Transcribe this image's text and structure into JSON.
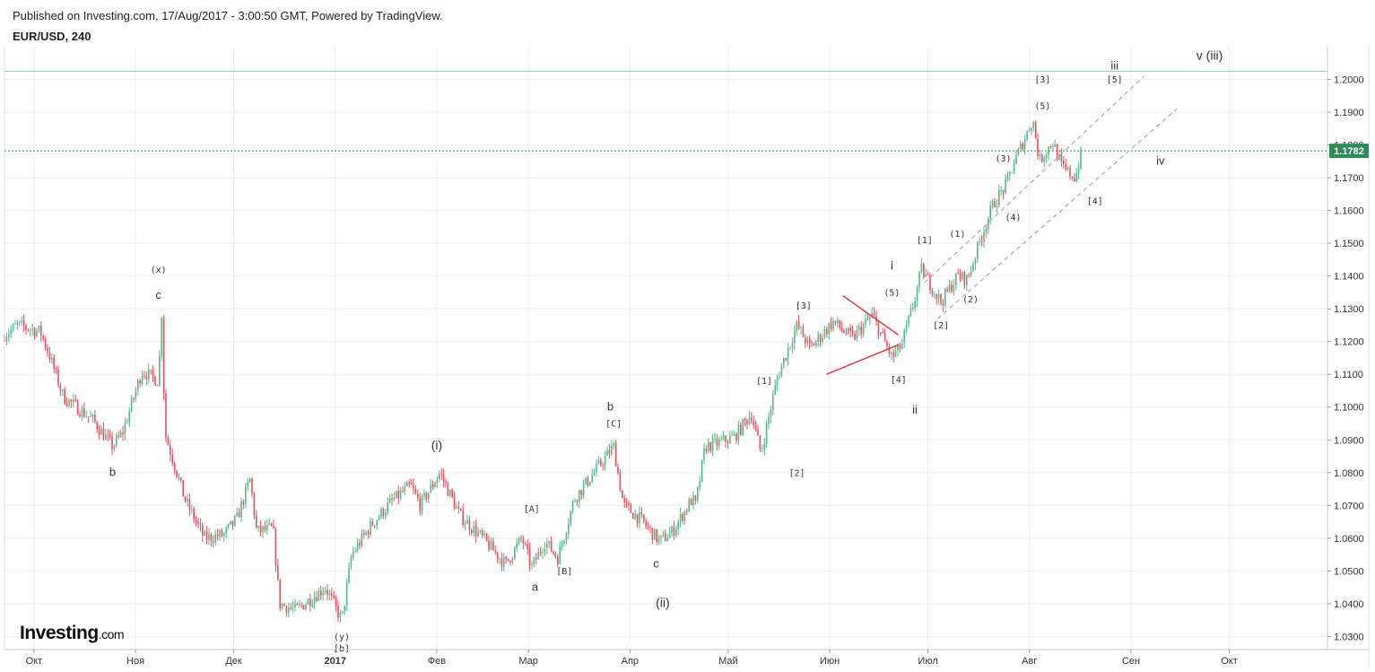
{
  "header": {
    "published": "Published on Investing.com, 17/Aug/2017 - 3:00:50 GMT, Powered by TradingView.",
    "symbol": "EUR/USD, 240"
  },
  "logo": {
    "brand": "Investing",
    "suffix": ".com"
  },
  "colors": {
    "up": "#53b987",
    "down": "#eb4d5c",
    "resistance_line": "#8ec3cf",
    "last_price_line": "#2e8b57",
    "last_price_badge": "#2e8b57",
    "channel": "#aaaaaa",
    "triangle": "#e53935"
  },
  "chart_data": {
    "type": "candlestick",
    "symbol": "EUR/USD",
    "interval": "240",
    "last_price": 1.1782,
    "last_price_label": "1.1782",
    "resistance_level": 1.2025,
    "ylim": [
      1.026,
      1.21
    ],
    "y_ticks": [
      "1.0300",
      "1.0400",
      "1.0500",
      "1.0600",
      "1.0700",
      "1.0800",
      "1.0900",
      "1.1000",
      "1.1100",
      "1.1200",
      "1.1300",
      "1.1400",
      "1.1500",
      "1.1600",
      "1.1700",
      "1.1800",
      "1.1900",
      "1.2000"
    ],
    "x_range": [
      "2016-09-22",
      "2017-10-31"
    ],
    "x_ticks": [
      {
        "label": "Окт",
        "date": "2016-10-01",
        "bold": false
      },
      {
        "label": "Ноя",
        "date": "2016-11-01",
        "bold": false
      },
      {
        "label": "Дек",
        "date": "2016-12-01",
        "bold": false
      },
      {
        "label": "2017",
        "date": "2017-01-01",
        "bold": true
      },
      {
        "label": "Фев",
        "date": "2017-02-01",
        "bold": false
      },
      {
        "label": "Мар",
        "date": "2017-03-01",
        "bold": false
      },
      {
        "label": "Апр",
        "date": "2017-04-01",
        "bold": false
      },
      {
        "label": "Май",
        "date": "2017-05-01",
        "bold": false
      },
      {
        "label": "Июн",
        "date": "2017-06-01",
        "bold": false
      },
      {
        "label": "Июл",
        "date": "2017-07-01",
        "bold": false
      },
      {
        "label": "Авг",
        "date": "2017-08-01",
        "bold": false
      },
      {
        "label": "Сен",
        "date": "2017-09-01",
        "bold": false
      },
      {
        "label": "Окт",
        "date": "2017-10-01",
        "bold": false
      }
    ],
    "price_path": [
      [
        "2016-09-22",
        1.122
      ],
      [
        "2016-09-26",
        1.125
      ],
      [
        "2016-10-03",
        1.123
      ],
      [
        "2016-10-06",
        1.115
      ],
      [
        "2016-10-10",
        1.103
      ],
      [
        "2016-10-14",
        1.1
      ],
      [
        "2016-10-19",
        1.096
      ],
      [
        "2016-10-25",
        1.088
      ],
      [
        "2016-10-28",
        1.092
      ],
      [
        "2016-11-03",
        1.111
      ],
      [
        "2016-11-08",
        1.108
      ],
      [
        "2016-11-09",
        1.129
      ],
      [
        "2016-11-10",
        1.092
      ],
      [
        "2016-11-16",
        1.072
      ],
      [
        "2016-11-22",
        1.06
      ],
      [
        "2016-11-28",
        1.061
      ],
      [
        "2016-12-02",
        1.066
      ],
      [
        "2016-12-06",
        1.078
      ],
      [
        "2016-12-08",
        1.062
      ],
      [
        "2016-12-13",
        1.063
      ],
      [
        "2016-12-15",
        1.04
      ],
      [
        "2016-12-20",
        1.038
      ],
      [
        "2016-12-29",
        1.045
      ],
      [
        "2017-01-03",
        1.035
      ],
      [
        "2017-01-06",
        1.055
      ],
      [
        "2017-01-12",
        1.064
      ],
      [
        "2017-01-18",
        1.071
      ],
      [
        "2017-01-24",
        1.076
      ],
      [
        "2017-01-27",
        1.07
      ],
      [
        "2017-02-02",
        1.08
      ],
      [
        "2017-02-08",
        1.067
      ],
      [
        "2017-02-15",
        1.06
      ],
      [
        "2017-02-22",
        1.052
      ],
      [
        "2017-02-27",
        1.06
      ],
      [
        "2017-03-02",
        1.051
      ],
      [
        "2017-03-06",
        1.059
      ],
      [
        "2017-03-10",
        1.054
      ],
      [
        "2017-03-15",
        1.072
      ],
      [
        "2017-03-21",
        1.08
      ],
      [
        "2017-03-27",
        1.088
      ],
      [
        "2017-03-30",
        1.07
      ],
      [
        "2017-04-04",
        1.066
      ],
      [
        "2017-04-10",
        1.059
      ],
      [
        "2017-04-14",
        1.062
      ],
      [
        "2017-04-20",
        1.072
      ],
      [
        "2017-04-21",
        1.07
      ],
      [
        "2017-04-24",
        1.088
      ],
      [
        "2017-04-28",
        1.089
      ],
      [
        "2017-05-03",
        1.091
      ],
      [
        "2017-05-08",
        1.098
      ],
      [
        "2017-05-11",
        1.086
      ],
      [
        "2017-05-16",
        1.109
      ],
      [
        "2017-05-22",
        1.125
      ],
      [
        "2017-05-26",
        1.118
      ],
      [
        "2017-06-02",
        1.126
      ],
      [
        "2017-06-08",
        1.121
      ],
      [
        "2017-06-14",
        1.128
      ],
      [
        "2017-06-20",
        1.115
      ],
      [
        "2017-06-23",
        1.119
      ],
      [
        "2017-06-27",
        1.133
      ],
      [
        "2017-06-29",
        1.142
      ],
      [
        "2017-07-05",
        1.132
      ],
      [
        "2017-07-10",
        1.14
      ],
      [
        "2017-07-13",
        1.139
      ],
      [
        "2017-07-18",
        1.154
      ],
      [
        "2017-07-21",
        1.162
      ],
      [
        "2017-07-25",
        1.168
      ],
      [
        "2017-07-27",
        1.174
      ],
      [
        "2017-07-31",
        1.183
      ],
      [
        "2017-08-02",
        1.188
      ],
      [
        "2017-08-04",
        1.175
      ],
      [
        "2017-08-08",
        1.181
      ],
      [
        "2017-08-11",
        1.173
      ],
      [
        "2017-08-15",
        1.17
      ],
      [
        "2017-08-17",
        1.1782
      ]
    ],
    "channel_lines": [
      {
        "from": [
          "2017-06-30",
          1.138
        ],
        "to": [
          "2017-09-05",
          1.201
        ]
      },
      {
        "from": [
          "2017-07-04",
          1.127
        ],
        "to": [
          "2017-09-15",
          1.191
        ]
      }
    ],
    "triangle_lines": [
      {
        "from": [
          "2017-06-05",
          1.134
        ],
        "to": [
          "2017-06-22",
          1.122
        ]
      },
      {
        "from": [
          "2017-05-31",
          1.11
        ],
        "to": [
          "2017-06-22",
          1.119
        ]
      }
    ],
    "wave_labels": [
      {
        "text": "(x)",
        "date": "2016-11-08",
        "price": 1.141,
        "size": "sm"
      },
      {
        "text": "c",
        "date": "2016-11-08",
        "price": 1.133,
        "size": "md"
      },
      {
        "text": "b",
        "date": "2016-10-25",
        "price": 1.079,
        "size": "md"
      },
      {
        "text": "(y)",
        "date": "2017-01-03",
        "price": 1.029,
        "size": "sm"
      },
      {
        "text": "[b]",
        "date": "2017-01-03",
        "price": 1.0255,
        "size": "sm"
      },
      {
        "text": "(i)",
        "date": "2017-02-01",
        "price": 1.087,
        "size": "lg"
      },
      {
        "text": "[A]",
        "date": "2017-03-02",
        "price": 1.068,
        "size": "sm"
      },
      {
        "text": "a",
        "date": "2017-03-03",
        "price": 1.044,
        "size": "md"
      },
      {
        "text": "[B]",
        "date": "2017-03-12",
        "price": 1.049,
        "size": "sm"
      },
      {
        "text": "b",
        "date": "2017-03-26",
        "price": 1.099,
        "size": "md"
      },
      {
        "text": "[C]",
        "date": "2017-03-27",
        "price": 1.094,
        "size": "sm"
      },
      {
        "text": "c",
        "date": "2017-04-09",
        "price": 1.051,
        "size": "md"
      },
      {
        "text": "(ii)",
        "date": "2017-04-11",
        "price": 1.039,
        "size": "lg"
      },
      {
        "text": "[1]",
        "date": "2017-05-12",
        "price": 1.107,
        "size": "sm"
      },
      {
        "text": "[2]",
        "date": "2017-05-22",
        "price": 1.079,
        "size": "sm"
      },
      {
        "text": "[3]",
        "date": "2017-05-24",
        "price": 1.13,
        "size": "sm"
      },
      {
        "text": "(5)",
        "date": "2017-06-20",
        "price": 1.134,
        "size": "sm"
      },
      {
        "text": "i",
        "date": "2017-06-20",
        "price": 1.142,
        "size": "md"
      },
      {
        "text": "[4]",
        "date": "2017-06-22",
        "price": 1.1075,
        "size": "sm"
      },
      {
        "text": "ii",
        "date": "2017-06-27",
        "price": 1.098,
        "size": "md"
      },
      {
        "text": "[1]",
        "date": "2017-06-30",
        "price": 1.15,
        "size": "sm"
      },
      {
        "text": "[2]",
        "date": "2017-07-05",
        "price": 1.124,
        "size": "sm"
      },
      {
        "text": "(1)",
        "date": "2017-07-10",
        "price": 1.152,
        "size": "sm"
      },
      {
        "text": "(2)",
        "date": "2017-07-14",
        "price": 1.132,
        "size": "sm"
      },
      {
        "text": "(3)",
        "date": "2017-07-24",
        "price": 1.175,
        "size": "sm"
      },
      {
        "text": "(4)",
        "date": "2017-07-27",
        "price": 1.157,
        "size": "sm"
      },
      {
        "text": "[3]",
        "date": "2017-08-05",
        "price": 1.199,
        "size": "sm"
      },
      {
        "text": "(5)",
        "date": "2017-08-05",
        "price": 1.191,
        "size": "sm"
      },
      {
        "text": "[5]",
        "date": "2017-08-27",
        "price": 1.199,
        "size": "sm"
      },
      {
        "text": "iii",
        "date": "2017-08-27",
        "price": 1.203,
        "size": "md"
      },
      {
        "text": "[4]",
        "date": "2017-08-21",
        "price": 1.162,
        "size": "sm"
      },
      {
        "text": "iv",
        "date": "2017-09-10",
        "price": 1.174,
        "size": "md"
      },
      {
        "text": "v (iii)",
        "date": "2017-09-25",
        "price": 1.206,
        "size": "lg"
      }
    ]
  }
}
